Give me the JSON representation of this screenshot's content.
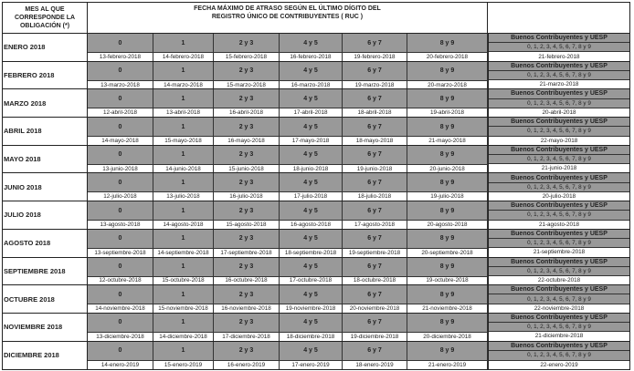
{
  "header": {
    "month_col": "MES AL QUE CORRESPONDE LA OBLIGACIÓN (*)",
    "title_line1": "FECHA MÁXIMO DE ATRASO SEGÚN EL ÚLTIMO DÍGITO DEL",
    "title_line2": "REGISTRO ÚNICO DE CONTRIBUYENTES ( RUC )"
  },
  "digit_groups": [
    "0",
    "1",
    "2 y 3",
    "4 y 5",
    "6 y 7",
    "8 y 9"
  ],
  "special": {
    "label": "Buenos Contribuyentes y UESP",
    "digits": "0, 1, 2, 3, 4, 5, 6, 7, 8 y 9"
  },
  "colors": {
    "cell_gray": "#999999",
    "border": "#222222"
  },
  "months": [
    {
      "name": "ENERO 2018",
      "dates": [
        "13-febrero-2018",
        "14-febrero-2018",
        "15-febrero-2018",
        "16-febrero-2018",
        "19-febrero-2018",
        "20-febrero-2018"
      ],
      "special_date": "21-febrero-2018"
    },
    {
      "name": "FEBRERO 2018",
      "dates": [
        "13-marzo-2018",
        "14-marzo-2018",
        "15-marzo-2018",
        "16-marzo-2018",
        "19-marzo-2018",
        "20-marzo-2018"
      ],
      "special_date": "21-marzo-2018"
    },
    {
      "name": "MARZO 2018",
      "dates": [
        "12-abril-2018",
        "13-abril-2018",
        "16-abril-2018",
        "17-abril-2018",
        "18-abril-2018",
        "19-abril-2018"
      ],
      "special_date": "20-abril-2018"
    },
    {
      "name": "ABRIL 2018",
      "dates": [
        "14-mayo-2018",
        "15-mayo-2018",
        "16-mayo-2018",
        "17-mayo-2018",
        "18-mayo-2018",
        "21-mayo-2018"
      ],
      "special_date": "22-mayo-2018"
    },
    {
      "name": "MAYO 2018",
      "dates": [
        "13-junio-2018",
        "14-junio-2018",
        "15-junio-2018",
        "18-junio-2018",
        "19-junio-2018",
        "20-junio-2018"
      ],
      "special_date": "21-junio-2018"
    },
    {
      "name": "JUNIO 2018",
      "dates": [
        "12-julio-2018",
        "13-julio-2018",
        "16-julio-2018",
        "17-julio-2018",
        "18-julio-2018",
        "19-julio-2018"
      ],
      "special_date": "20-julio-2018"
    },
    {
      "name": "JULIO 2018",
      "dates": [
        "13-agosto-2018",
        "14-agosto-2018",
        "15-agosto-2018",
        "16-agosto-2018",
        "17-agosto-2018",
        "20-agosto-2018"
      ],
      "special_date": "21-agosto-2018"
    },
    {
      "name": "AGOSTO 2018",
      "dates": [
        "13-septiembre-2018",
        "14-septiembre-2018",
        "17-septiembre-2018",
        "18-septiembre-2018",
        "19-septiembre-2018",
        "20-septiembre-2018"
      ],
      "special_date": "21-septiembre-2018"
    },
    {
      "name": "SEPTIEMBRE 2018",
      "dates": [
        "12-octubre-2018",
        "15-octubre-2018",
        "16-octubre-2018",
        "17-octubre-2018",
        "18-octubre-2018",
        "19-octubre-2018"
      ],
      "special_date": "22-octubre-2018"
    },
    {
      "name": "OCTUBRE 2018",
      "dates": [
        "14-noviembre-2018",
        "15-noviembre-2018",
        "16-noviembre-2018",
        "19-noviembre-2018",
        "20-noviembre-2018",
        "21-noviembre-2018"
      ],
      "special_date": "22-noviembre-2018"
    },
    {
      "name": "NOVIEMBRE 2018",
      "dates": [
        "13-diciembre-2018",
        "14-diciembre-2018",
        "17-diciembre-2018",
        "18-diciembre-2018",
        "19-diciembre-2018",
        "20-diciembre-2018"
      ],
      "special_date": "21-diciembre-2018"
    },
    {
      "name": "DICIEMBRE 2018",
      "dates": [
        "14-enero-2019",
        "15-enero-2019",
        "16-enero-2019",
        "17-enero-2019",
        "18-enero-2019",
        "21-enero-2019"
      ],
      "special_date": "22-enero-2019"
    }
  ]
}
